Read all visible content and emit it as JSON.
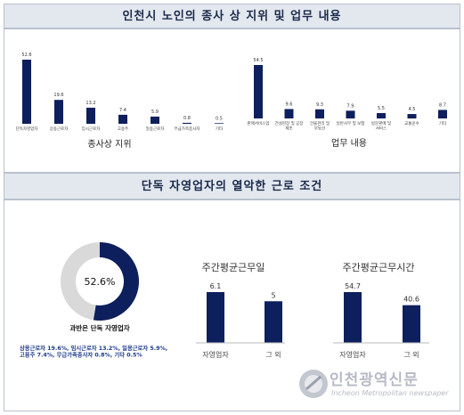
{
  "header1": {
    "title": "인천시 노인의 종사 상 지위 및 업무 내용"
  },
  "header2": {
    "title": "단독 자영업자의 열악한 근로 조건"
  },
  "chart_data": [
    {
      "type": "bar",
      "title": "",
      "xlabel": "종사상 지위",
      "categories": [
        "단독자영업자",
        "상용근로자",
        "임시근로자",
        "고용주",
        "일용근로자",
        "무급가족종사자",
        "기타"
      ],
      "values": [
        52.6,
        19.6,
        13.2,
        7.4,
        5.9,
        0.8,
        0.5
      ],
      "color": "#0d1f5c"
    },
    {
      "type": "bar",
      "title": "",
      "xlabel": "업무 내용",
      "categories": [
        "판매서비스업",
        "건설현장 및 공장\n제조",
        "건물관리 및\n부동산",
        "일반사무 및 보험",
        "방문판매 및\n서비스",
        "교통운수",
        "기타"
      ],
      "values": [
        54.5,
        9.6,
        9.3,
        7.9,
        5.5,
        4.5,
        8.7
      ],
      "color": "#0d1f5c"
    },
    {
      "type": "pie",
      "center_label": "52.6%",
      "caption": "과반은 단독 자영업자",
      "values": [
        52.6,
        47.4
      ],
      "colors": [
        "#0d1f5c",
        "#d9d9d9"
      ],
      "note": "상용근로자 19.6%, 임시근로자 13.2%, 일용근로자 5.9%,\n고용주 7.4%, 무급가족종사자 0.8%, 기타 0.5%"
    },
    {
      "type": "bar",
      "title": "주간평균근무일",
      "categories": [
        "자영업자",
        "그 외"
      ],
      "values": [
        6.1,
        5
      ],
      "color": "#0d1f5c"
    },
    {
      "type": "bar",
      "title": "주간평균근무시간",
      "categories": [
        "자영업자",
        "그 외"
      ],
      "values": [
        54.7,
        40.6
      ],
      "color": "#0d1f5c"
    }
  ],
  "watermark": {
    "name": "인천광역신문",
    "sub": "Incheon Metropolitan newspaper"
  }
}
